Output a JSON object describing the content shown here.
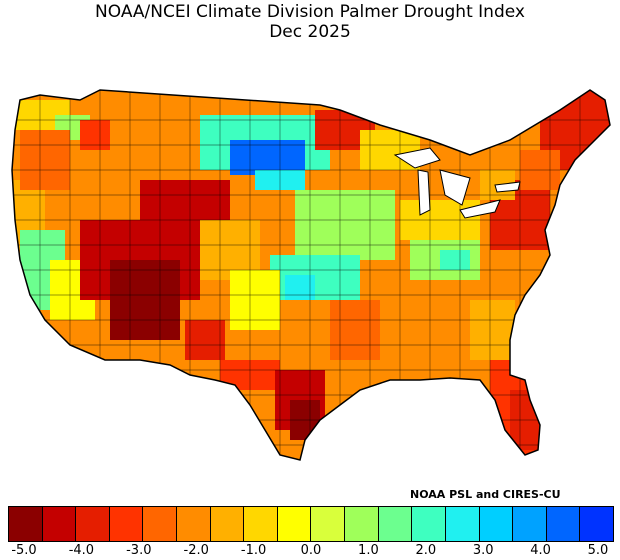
{
  "title_line1": "NOAA/NCEI Climate Division Palmer Drought Index",
  "title_line2": "Dec 2025",
  "credit": "NOAA PSL and CIRES-CU",
  "colorbar": {
    "colors": [
      "#8b0000",
      "#c40000",
      "#e51e00",
      "#ff3300",
      "#ff6600",
      "#ff8c00",
      "#ffb000",
      "#ffd700",
      "#ffff00",
      "#d9ff3b",
      "#9fff5a",
      "#6cff8f",
      "#3effc0",
      "#20f0f0",
      "#00cfff",
      "#00a2ff",
      "#0066ff",
      "#0033ff"
    ],
    "tick_labels": [
      "-5.0",
      "-4.0",
      "-3.0",
      "-2.0",
      "-1.0",
      "0.0",
      "1.0",
      "2.0",
      "3.0",
      "4.0",
      "5.0"
    ]
  }
}
